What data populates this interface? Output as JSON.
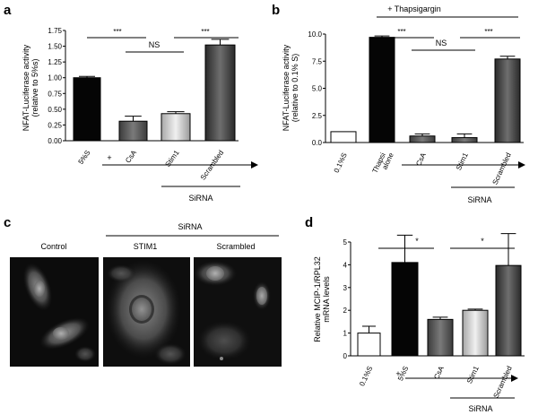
{
  "panel_labels": [
    "a",
    "b",
    "c",
    "d"
  ],
  "colors": {
    "black": "#000000",
    "dark_grey": "#4d4d4d",
    "light_grey": "#d0d0d0",
    "scrambled_grey": "#3a3a3a",
    "white": "#ffffff"
  },
  "chart_data": [
    {
      "panel": "a",
      "type": "bar",
      "ylabel_lines": [
        "NFAT-Luciferase activity",
        "(relative to 5%s)"
      ],
      "ylim": [
        0,
        1.75
      ],
      "yticks": [
        "0.00",
        "0.25",
        "0.50",
        "0.75",
        "1.00",
        "1.25",
        "1.50",
        "1.75"
      ],
      "categories": [
        "5%S",
        "CsA",
        "Stim1",
        "Scrambled"
      ],
      "values": [
        1.0,
        0.31,
        0.43,
        1.52
      ],
      "errors": [
        0.02,
        0.08,
        0.03,
        0.09
      ],
      "plus_label": "+",
      "group_label": "SiRNA",
      "significance": [
        "***",
        "NS",
        "***"
      ]
    },
    {
      "panel": "b",
      "type": "bar",
      "top_label": "+ Thapsigargin",
      "ylabel_lines": [
        "NFAT-Luciferase activity",
        "(relative to 0.1% S)"
      ],
      "ylim": [
        0,
        10
      ],
      "yticks": [
        "0.0",
        "2.5",
        "5.0",
        "7.5",
        "10.0"
      ],
      "categories": [
        "0.1%S",
        "Thapsi alone",
        "CsA",
        "Stim1",
        "Scrambled"
      ],
      "values": [
        1.0,
        9.7,
        0.6,
        0.45,
        7.7
      ],
      "errors": [
        0.0,
        0.12,
        0.2,
        0.35,
        0.25
      ],
      "group_label": "SiRNA",
      "significance": [
        "***",
        "NS",
        "***"
      ]
    },
    {
      "panel": "d",
      "type": "bar",
      "ylabel_lines": [
        "Relative MCIP-1/RPL32",
        "mRNA levels"
      ],
      "ylim": [
        0,
        5
      ],
      "yticks": [
        "0",
        "1",
        "2",
        "3",
        "4",
        "5"
      ],
      "categories": [
        "0.1%S",
        "5%S",
        "CsA",
        "Stim1",
        "Scrambled"
      ],
      "values": [
        1.0,
        4.1,
        1.6,
        2.0,
        3.97
      ],
      "errors": [
        0.3,
        1.2,
        0.1,
        0.05,
        1.4
      ],
      "plus_label": "+",
      "group_label": "SiRNA",
      "significance": [
        "*",
        "*"
      ]
    }
  ],
  "panel_c": {
    "group_label": "SiRNA",
    "image_labels": [
      "Control",
      "STIM1",
      "Scrambled"
    ]
  }
}
